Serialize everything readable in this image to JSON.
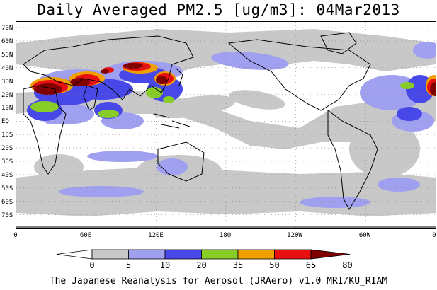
{
  "title": "Daily Averaged PM2.5 [ug/m3]: 04Mar2013",
  "footer": "The Japanese Reanalysis for Aerosol (JRAero) v1.0 MRI/KU_RIAM",
  "map": {
    "lat_labels": [
      "70N",
      "60N",
      "50N",
      "40N",
      "30N",
      "20N",
      "10N",
      "EQ",
      "10S",
      "20S",
      "30S",
      "40S",
      "50S",
      "60S",
      "70S"
    ],
    "lon_labels": [
      "0",
      "60E",
      "120E",
      "180",
      "120W",
      "60W",
      "0"
    ]
  },
  "colorbar": {
    "levels": [
      "0",
      "5",
      "10",
      "20",
      "35",
      "50",
      "65",
      "80"
    ],
    "colors": [
      "#ffffff",
      "#c8c8c8",
      "#a0a0f0",
      "#4848e8",
      "#88cc28",
      "#f0a000",
      "#e81010",
      "#800000"
    ]
  },
  "colors": {
    "land_outline": "#000000",
    "grid_dots": "#888888"
  }
}
